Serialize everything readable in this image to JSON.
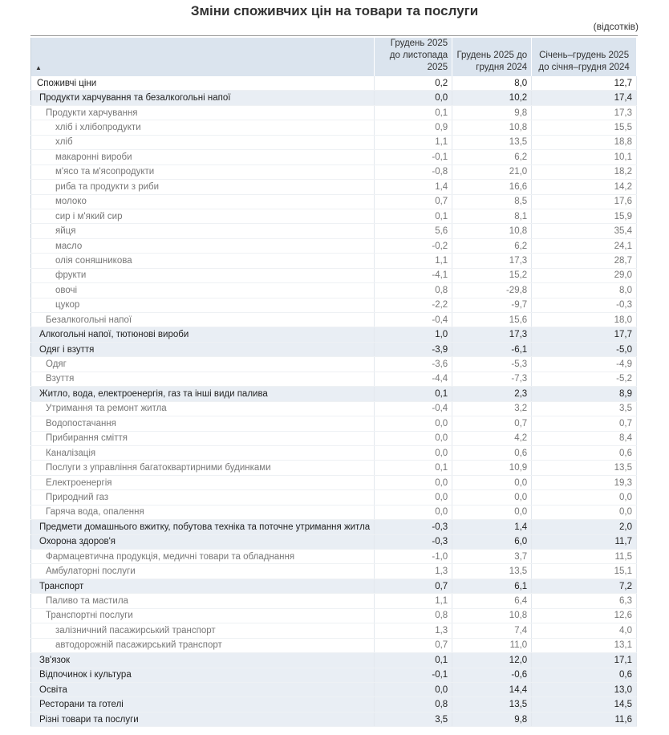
{
  "title": "Зміни споживчих цін на товари та послуги",
  "unit": "(відсотків)",
  "columns": [
    "Грудень 2025 до листопада 2025",
    "Грудень 2025 до грудня 2024",
    "Січень–грудень 2025 до січня–грудня 2024"
  ],
  "sort_icon": "triangle-up",
  "rows": [
    {
      "label": "Споживчі ціни",
      "level": 0,
      "values": [
        "0,2",
        "8,0",
        "12,7"
      ]
    },
    {
      "label": "Продукти харчування та безалкогольні напої",
      "level": 1,
      "values": [
        "0,0",
        "10,2",
        "17,4"
      ]
    },
    {
      "label": "Продукти харчування",
      "level": 2,
      "values": [
        "0,1",
        "9,8",
        "17,3"
      ]
    },
    {
      "label": "хліб і хлібопродукти",
      "level": 3,
      "values": [
        "0,9",
        "10,8",
        "15,5"
      ]
    },
    {
      "label": "хліб",
      "level": 3,
      "values": [
        "1,1",
        "13,5",
        "18,8"
      ]
    },
    {
      "label": "макаронні вироби",
      "level": 3,
      "values": [
        "-0,1",
        "6,2",
        "10,1"
      ]
    },
    {
      "label": "м'ясо та м'ясопродукти",
      "level": 3,
      "values": [
        "-0,8",
        "21,0",
        "18,2"
      ]
    },
    {
      "label": "риба та продукти з риби",
      "level": 3,
      "values": [
        "1,4",
        "16,6",
        "14,2"
      ]
    },
    {
      "label": "молоко",
      "level": 3,
      "values": [
        "0,7",
        "8,5",
        "17,6"
      ]
    },
    {
      "label": "сир і м'який сир",
      "level": 3,
      "values": [
        "0,1",
        "8,1",
        "15,9"
      ]
    },
    {
      "label": "яйця",
      "level": 3,
      "values": [
        "5,6",
        "10,8",
        "35,4"
      ]
    },
    {
      "label": "масло",
      "level": 3,
      "values": [
        "-0,2",
        "6,2",
        "24,1"
      ]
    },
    {
      "label": "олія соняшникова",
      "level": 3,
      "values": [
        "1,1",
        "17,3",
        "28,7"
      ]
    },
    {
      "label": "фрукти",
      "level": 3,
      "values": [
        "-4,1",
        "15,2",
        "29,0"
      ]
    },
    {
      "label": "овочі",
      "level": 3,
      "values": [
        "0,8",
        "-29,8",
        "8,0"
      ]
    },
    {
      "label": "цукор",
      "level": 3,
      "values": [
        "-2,2",
        "-9,7",
        "-0,3"
      ]
    },
    {
      "label": "Безалкогольні напої",
      "level": 2,
      "values": [
        "-0,4",
        "15,6",
        "18,0"
      ]
    },
    {
      "label": "Алкогольні напої, тютюнові вироби",
      "level": 1,
      "values": [
        "1,0",
        "17,3",
        "17,7"
      ]
    },
    {
      "label": "Одяг і взуття",
      "level": 1,
      "values": [
        "-3,9",
        "-6,1",
        "-5,0"
      ]
    },
    {
      "label": "Одяг",
      "level": 2,
      "values": [
        "-3,6",
        "-5,3",
        "-4,9"
      ]
    },
    {
      "label": "Взуття",
      "level": 2,
      "values": [
        "-4,4",
        "-7,3",
        "-5,2"
      ]
    },
    {
      "label": "Житло, вода, електроенергія, газ та інші види палива",
      "level": 1,
      "values": [
        "0,1",
        "2,3",
        "8,9"
      ]
    },
    {
      "label": "Утримання та ремонт житла",
      "level": 2,
      "values": [
        "-0,4",
        "3,2",
        "3,5"
      ]
    },
    {
      "label": "Водопостачання",
      "level": 2,
      "values": [
        "0,0",
        "0,7",
        "0,7"
      ]
    },
    {
      "label": "Прибирання сміття",
      "level": 2,
      "values": [
        "0,0",
        "4,2",
        "8,4"
      ]
    },
    {
      "label": "Каналізація",
      "level": 2,
      "values": [
        "0,0",
        "0,6",
        "0,6"
      ]
    },
    {
      "label": "Послуги з управління багатоквартирними будинками",
      "level": 2,
      "values": [
        "0,1",
        "10,9",
        "13,5"
      ]
    },
    {
      "label": "Електроенергія",
      "level": 2,
      "values": [
        "0,0",
        "0,0",
        "19,3"
      ]
    },
    {
      "label": "Природний газ",
      "level": 2,
      "values": [
        "0,0",
        "0,0",
        "0,0"
      ]
    },
    {
      "label": "Гаряча вода, опалення",
      "level": 2,
      "values": [
        "0,0",
        "0,0",
        "0,0"
      ]
    },
    {
      "label": "Предмети домашнього вжитку, побутова техніка та поточне утримання житла",
      "level": 1,
      "values": [
        "-0,3",
        "1,4",
        "2,0"
      ]
    },
    {
      "label": "Охорона здоров'я",
      "level": 1,
      "values": [
        "-0,3",
        "6,0",
        "11,7"
      ]
    },
    {
      "label": "Фармацевтична продукція, медичні товари та обладнання",
      "level": 2,
      "values": [
        "-1,0",
        "3,7",
        "11,5"
      ]
    },
    {
      "label": "Амбулаторні послуги",
      "level": 2,
      "values": [
        "1,3",
        "13,5",
        "15,1"
      ]
    },
    {
      "label": "Транспорт",
      "level": 1,
      "values": [
        "0,7",
        "6,1",
        "7,2"
      ]
    },
    {
      "label": "Паливо та мастила",
      "level": 2,
      "values": [
        "1,1",
        "6,4",
        "6,3"
      ]
    },
    {
      "label": "Транспортні послуги",
      "level": 2,
      "values": [
        "0,8",
        "10,8",
        "12,6"
      ]
    },
    {
      "label": "залізничний пасажирський транспорт",
      "level": 3,
      "values": [
        "1,3",
        "7,4",
        "4,0"
      ]
    },
    {
      "label": "автодорожній пасажирський транспорт",
      "level": 3,
      "values": [
        "0,7",
        "11,0",
        "13,1"
      ]
    },
    {
      "label": "Зв'язок",
      "level": 1,
      "values": [
        "0,1",
        "12,0",
        "17,1"
      ]
    },
    {
      "label": "Відпочинок і культура",
      "level": 1,
      "values": [
        "-0,1",
        "-0,6",
        "0,6"
      ]
    },
    {
      "label": "Освіта",
      "level": 1,
      "values": [
        "0,0",
        "14,4",
        "13,0"
      ]
    },
    {
      "label": "Ресторани та готелі",
      "level": 1,
      "values": [
        "0,8",
        "13,5",
        "14,5"
      ]
    },
    {
      "label": "Різні товари та послуги",
      "level": 1,
      "values": [
        "3,5",
        "9,8",
        "11,6"
      ]
    }
  ]
}
